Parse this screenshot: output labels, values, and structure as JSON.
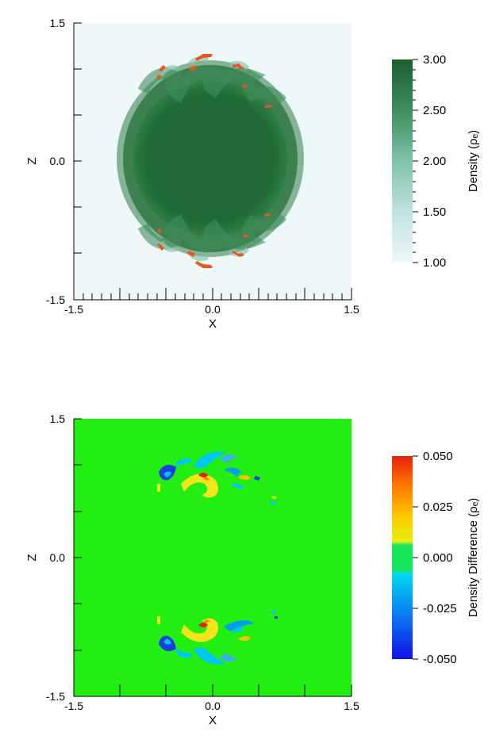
{
  "chart_data": [
    {
      "type": "heatmap",
      "title": "",
      "xlabel": "X",
      "ylabel": "Z",
      "xlim": [
        -1.5,
        1.5
      ],
      "ylim": [
        -1.5,
        1.5
      ],
      "x_ticks": [
        "-1.5",
        "0.0",
        "1.5"
      ],
      "y_ticks": [
        "-1.5",
        "0.0",
        "1.5"
      ],
      "colorbar": {
        "label": "Density (ρₑ)",
        "min": 1.0,
        "max": 3.0,
        "ticks": [
          "1.00",
          "1.50",
          "2.00",
          "2.50",
          "3.00"
        ],
        "colors": [
          "#eef8f9",
          "#1f6a35"
        ]
      },
      "features": {
        "cloud_density": 3.0,
        "ambient_density": 1.0,
        "cloud_radius": 0.98,
        "marker_color": "#e9541f"
      }
    },
    {
      "type": "heatmap",
      "title": "",
      "xlabel": "X",
      "ylabel": "Z",
      "xlim": [
        -1.5,
        1.5
      ],
      "ylim": [
        -1.5,
        1.5
      ],
      "x_ticks": [
        "-1.5",
        "0.0",
        "1.5"
      ],
      "y_ticks": [
        "-1.5",
        "0.0",
        "1.5"
      ],
      "colorbar": {
        "label": "Density Difference (ρₑ)",
        "min": -0.05,
        "max": 0.05,
        "ticks": [
          "-0.050",
          "-0.025",
          "0.000",
          "0.025",
          "0.050"
        ],
        "colors": [
          "#1010e6",
          "#00b8ff",
          "#16e65c",
          "#ffd400",
          "#ff8a00",
          "#e8210c"
        ]
      },
      "features": {
        "background_value": 0.0,
        "background_color": "#22ee11"
      }
    }
  ]
}
